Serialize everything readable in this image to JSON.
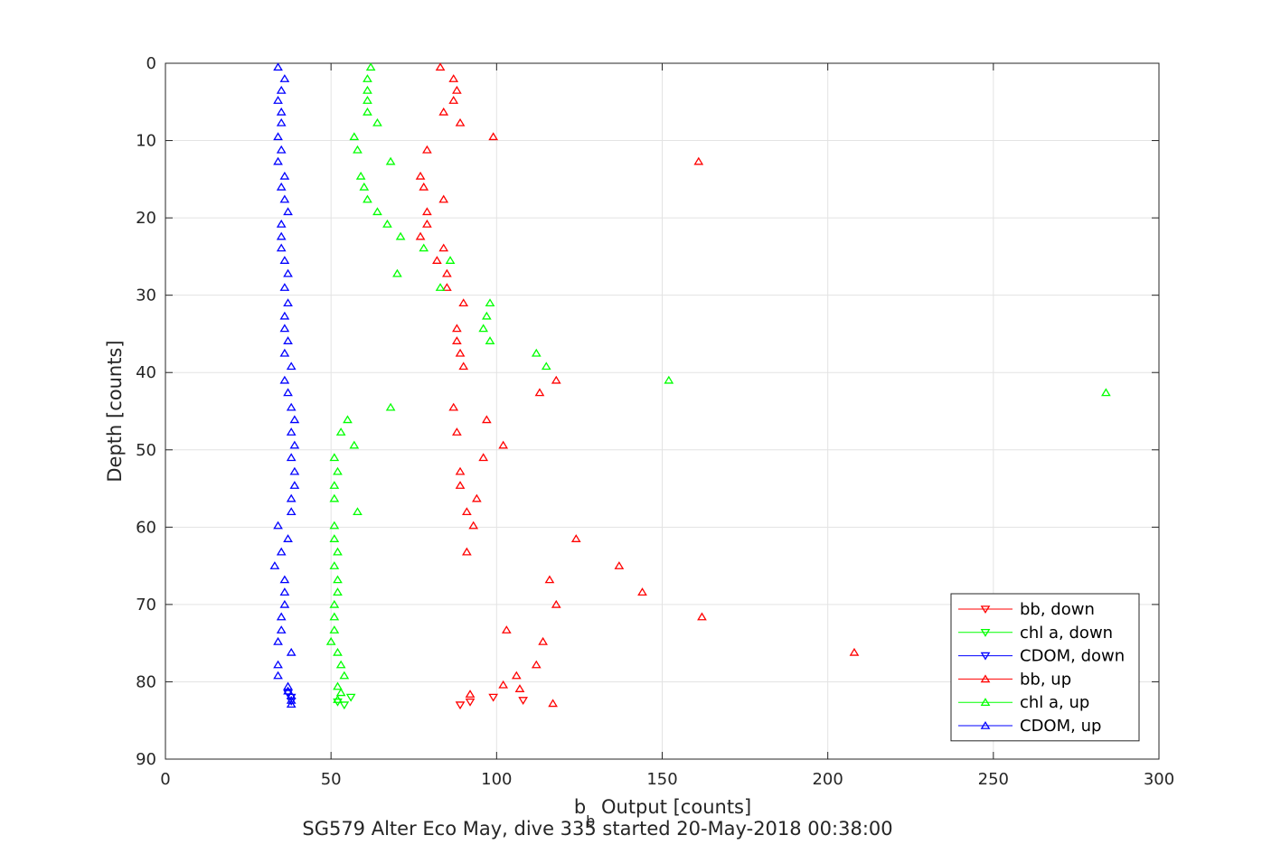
{
  "chart_data": {
    "type": "scatter",
    "title": "",
    "caption": "SG579 Alter Eco May, dive 335 started 20-May-2018 00:38:00",
    "xlabel": "b",
    "xlabel_sub": "b",
    "xlabel_rest": " Output [counts]",
    "ylabel": "Depth [counts]",
    "xlim": [
      0,
      300
    ],
    "ylim": [
      0,
      90
    ],
    "y_reversed": true,
    "grid": true,
    "legend_position": "bottom-right",
    "xticks": [
      0,
      50,
      100,
      150,
      200,
      250,
      300
    ],
    "yticks": [
      0,
      10,
      20,
      30,
      40,
      50,
      60,
      70,
      80,
      90
    ],
    "series": [
      {
        "name": "bb, down",
        "color": "#ff0000",
        "marker": "triangle-down",
        "points": [
          [
            89,
            83
          ],
          [
            92,
            82.6
          ],
          [
            99,
            82
          ],
          [
            108,
            82.4
          ]
        ]
      },
      {
        "name": "chl a, down",
        "color": "#00ff00",
        "marker": "triangle-down",
        "points": [
          [
            52,
            82.6
          ],
          [
            54,
            83
          ],
          [
            56,
            82
          ]
        ]
      },
      {
        "name": "CDOM, down",
        "color": "#0000ff",
        "marker": "triangle-down",
        "points": [
          [
            38,
            82.5
          ],
          [
            38,
            82
          ],
          [
            37,
            81.5
          ]
        ]
      },
      {
        "name": "bb, up",
        "color": "#ff0000",
        "marker": "triangle-up",
        "points": [
          [
            83,
            0.5
          ],
          [
            87,
            2
          ],
          [
            88,
            3.5
          ],
          [
            87,
            4.8
          ],
          [
            84,
            6.3
          ],
          [
            89,
            7.7
          ],
          [
            99,
            9.5
          ],
          [
            79,
            11.2
          ],
          [
            161,
            12.7
          ],
          [
            77,
            14.6
          ],
          [
            78,
            16
          ],
          [
            84,
            17.6
          ],
          [
            79,
            19.2
          ],
          [
            79,
            20.8
          ],
          [
            77,
            22.4
          ],
          [
            84,
            23.9
          ],
          [
            82,
            25.5
          ],
          [
            85,
            27.2
          ],
          [
            85,
            29
          ],
          [
            90,
            31
          ],
          [
            88,
            34.3
          ],
          [
            88,
            35.9
          ],
          [
            89,
            37.5
          ],
          [
            90,
            39.2
          ],
          [
            118,
            41
          ],
          [
            113,
            42.6
          ],
          [
            87,
            44.5
          ],
          [
            97,
            46.1
          ],
          [
            88,
            47.7
          ],
          [
            102,
            49.4
          ],
          [
            96,
            51
          ],
          [
            89,
            52.8
          ],
          [
            89,
            54.6
          ],
          [
            94,
            56.3
          ],
          [
            91,
            58
          ],
          [
            93,
            59.8
          ],
          [
            124,
            61.5
          ],
          [
            91,
            63.2
          ],
          [
            137,
            65
          ],
          [
            116,
            66.8
          ],
          [
            144,
            68.4
          ],
          [
            118,
            70
          ],
          [
            162,
            71.6
          ],
          [
            103,
            73.3
          ],
          [
            114,
            74.8
          ],
          [
            208,
            76.2
          ],
          [
            112,
            77.8
          ],
          [
            106,
            79.2
          ],
          [
            102,
            80.4
          ],
          [
            107,
            80.9
          ],
          [
            92,
            81.6
          ],
          [
            117,
            82.8
          ]
        ]
      },
      {
        "name": "chl a, up",
        "color": "#00ff00",
        "marker": "triangle-up",
        "points": [
          [
            62,
            0.5
          ],
          [
            61,
            2
          ],
          [
            61,
            3.5
          ],
          [
            61,
            4.8
          ],
          [
            61,
            6.3
          ],
          [
            64,
            7.7
          ],
          [
            57,
            9.5
          ],
          [
            58,
            11.2
          ],
          [
            68,
            12.7
          ],
          [
            59,
            14.6
          ],
          [
            60,
            16
          ],
          [
            61,
            17.6
          ],
          [
            64,
            19.2
          ],
          [
            67,
            20.8
          ],
          [
            71,
            22.4
          ],
          [
            78,
            23.9
          ],
          [
            86,
            25.5
          ],
          [
            70,
            27.2
          ],
          [
            83,
            29
          ],
          [
            98,
            31
          ],
          [
            97,
            32.7
          ],
          [
            96,
            34.3
          ],
          [
            98,
            35.9
          ],
          [
            112,
            37.5
          ],
          [
            115,
            39.2
          ],
          [
            152,
            41
          ],
          [
            284,
            42.6
          ],
          [
            68,
            44.5
          ],
          [
            55,
            46.1
          ],
          [
            53,
            47.7
          ],
          [
            57,
            49.4
          ],
          [
            51,
            51
          ],
          [
            52,
            52.8
          ],
          [
            51,
            54.6
          ],
          [
            51,
            56.3
          ],
          [
            58,
            58
          ],
          [
            51,
            59.8
          ],
          [
            51,
            61.5
          ],
          [
            52,
            63.2
          ],
          [
            51,
            65
          ],
          [
            52,
            66.8
          ],
          [
            52,
            68.4
          ],
          [
            51,
            70
          ],
          [
            51,
            71.6
          ],
          [
            51,
            73.3
          ],
          [
            50,
            74.8
          ],
          [
            52,
            76.2
          ],
          [
            53,
            77.8
          ],
          [
            54,
            79.2
          ],
          [
            52,
            80.6
          ],
          [
            53,
            81.4
          ],
          [
            52,
            82.3
          ]
        ]
      },
      {
        "name": "CDOM, up",
        "color": "#0000ff",
        "marker": "triangle-up",
        "points": [
          [
            34,
            0.5
          ],
          [
            36,
            2
          ],
          [
            35,
            3.5
          ],
          [
            34,
            4.8
          ],
          [
            35,
            6.3
          ],
          [
            35,
            7.7
          ],
          [
            34,
            9.5
          ],
          [
            35,
            11.2
          ],
          [
            34,
            12.7
          ],
          [
            36,
            14.6
          ],
          [
            35,
            16
          ],
          [
            36,
            17.6
          ],
          [
            37,
            19.2
          ],
          [
            35,
            20.8
          ],
          [
            35,
            22.4
          ],
          [
            35,
            23.9
          ],
          [
            36,
            25.5
          ],
          [
            37,
            27.2
          ],
          [
            36,
            29
          ],
          [
            37,
            31
          ],
          [
            36,
            32.7
          ],
          [
            36,
            34.3
          ],
          [
            37,
            35.9
          ],
          [
            36,
            37.5
          ],
          [
            38,
            39.2
          ],
          [
            36,
            41
          ],
          [
            37,
            42.6
          ],
          [
            38,
            44.5
          ],
          [
            39,
            46.1
          ],
          [
            38,
            47.7
          ],
          [
            39,
            49.4
          ],
          [
            38,
            51
          ],
          [
            39,
            52.8
          ],
          [
            39,
            54.6
          ],
          [
            38,
            56.3
          ],
          [
            38,
            58
          ],
          [
            34,
            59.8
          ],
          [
            37,
            61.5
          ],
          [
            35,
            63.2
          ],
          [
            33,
            65
          ],
          [
            36,
            66.8
          ],
          [
            36,
            68.4
          ],
          [
            36,
            70
          ],
          [
            35,
            71.6
          ],
          [
            35,
            73.3
          ],
          [
            34,
            74.8
          ],
          [
            38,
            76.2
          ],
          [
            34,
            77.8
          ],
          [
            34,
            79.2
          ],
          [
            37,
            80.6
          ],
          [
            37,
            81.2
          ],
          [
            38,
            81.8
          ],
          [
            38,
            82.4
          ],
          [
            38,
            82.9
          ]
        ]
      }
    ]
  }
}
